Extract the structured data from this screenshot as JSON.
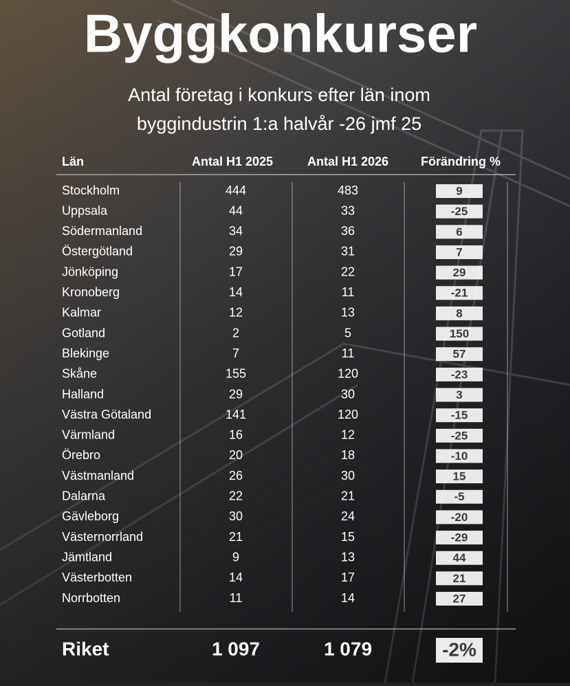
{
  "header": {
    "title": "Byggkonkurser",
    "subtitle": [
      "Antal företag i konkurs efter län inom",
      "byggindustrin 1:a halvår -26 jmf 25"
    ]
  },
  "table": {
    "columns": [
      "Län",
      "Antal H1 2025",
      "Antal H1 2026",
      "Förändring %"
    ],
    "rows": [
      [
        "Stockholm",
        "444",
        "483",
        "9"
      ],
      [
        "Uppsala",
        "44",
        "33",
        "-25"
      ],
      [
        "Södermanland",
        "34",
        "36",
        "6"
      ],
      [
        "Östergötland",
        "29",
        "31",
        "7"
      ],
      [
        "Jönköping",
        "17",
        "22",
        "29"
      ],
      [
        "Kronoberg",
        "14",
        "11",
        "-21"
      ],
      [
        "Kalmar",
        "12",
        "13",
        "8"
      ],
      [
        "Gotland",
        "2",
        "5",
        "150"
      ],
      [
        "Blekinge",
        "7",
        "11",
        "57"
      ],
      [
        "Skåne",
        "155",
        "120",
        "-23"
      ],
      [
        "Halland",
        "29",
        "30",
        "3"
      ],
      [
        "Västra Götaland",
        "141",
        "120",
        "-15"
      ],
      [
        "Värmland",
        "16",
        "12",
        "-25"
      ],
      [
        "Örebro",
        "20",
        "18",
        "-10"
      ],
      [
        "Västmanland",
        "26",
        "30",
        "15"
      ],
      [
        "Dalarna",
        "22",
        "21",
        "-5"
      ],
      [
        "Gävleborg",
        "30",
        "24",
        "-20"
      ],
      [
        "Västernorrland",
        "21",
        "15",
        "-29"
      ],
      [
        "Jämtland",
        "9",
        "13",
        "44"
      ],
      [
        "Västerbotten",
        "14",
        "17",
        "21"
      ],
      [
        "Norrbotten",
        "11",
        "14",
        "27"
      ]
    ],
    "total": [
      "Riket",
      "1 097",
      "1 079",
      "-2%"
    ]
  }
}
